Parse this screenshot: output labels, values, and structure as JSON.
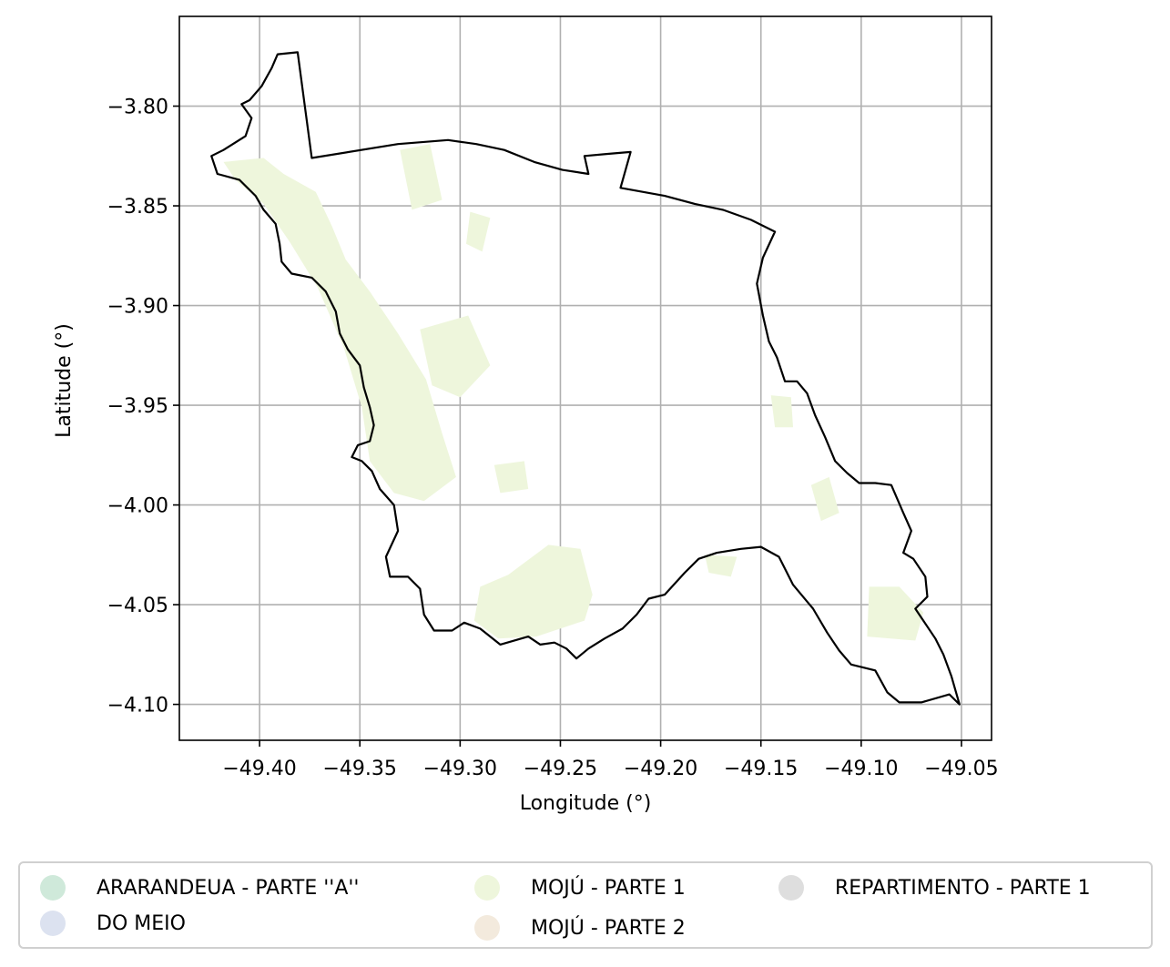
{
  "chart_data": {
    "type": "map",
    "xlabel": "Longitude (°)",
    "ylabel": "Latitude (°)",
    "xlim": [
      -49.44,
      -49.035
    ],
    "ylim": [
      -4.118,
      -3.755
    ],
    "x_ticks": [
      -49.4,
      -49.35,
      -49.3,
      -49.25,
      -49.2,
      -49.15,
      -49.1,
      -49.05
    ],
    "x_tick_labels": [
      "−49.40",
      "−49.35",
      "−49.30",
      "−49.25",
      "−49.20",
      "−49.15",
      "−49.10",
      "−49.05"
    ],
    "y_ticks": [
      -3.8,
      -3.85,
      -3.9,
      -3.95,
      -4.0,
      -4.05,
      -4.1
    ],
    "y_tick_labels": [
      "−3.80",
      "−3.85",
      "−3.90",
      "−3.95",
      "−4.00",
      "−4.05",
      "−4.10"
    ],
    "grid": true,
    "legend_position": "bottom-center",
    "boundary_color": "#000000",
    "boundary": [
      [
        -49.381,
        -3.773
      ],
      [
        -49.391,
        -3.774
      ],
      [
        -49.394,
        -3.781
      ],
      [
        -49.399,
        -3.79
      ],
      [
        -49.405,
        -3.797
      ],
      [
        -49.409,
        -3.799
      ],
      [
        -49.404,
        -3.806
      ],
      [
        -49.407,
        -3.815
      ],
      [
        -49.418,
        -3.822
      ],
      [
        -49.424,
        -3.825
      ],
      [
        -49.421,
        -3.834
      ],
      [
        -49.41,
        -3.837
      ],
      [
        -49.402,
        -3.845
      ],
      [
        -49.398,
        -3.852
      ],
      [
        -49.392,
        -3.859
      ],
      [
        -49.39,
        -3.869
      ],
      [
        -49.389,
        -3.878
      ],
      [
        -49.384,
        -3.884
      ],
      [
        -49.374,
        -3.886
      ],
      [
        -49.367,
        -3.893
      ],
      [
        -49.362,
        -3.903
      ],
      [
        -49.36,
        -3.914
      ],
      [
        -49.356,
        -3.922
      ],
      [
        -49.35,
        -3.93
      ],
      [
        -49.348,
        -3.941
      ],
      [
        -49.345,
        -3.951
      ],
      [
        -49.343,
        -3.96
      ],
      [
        -49.345,
        -3.968
      ],
      [
        -49.351,
        -3.97
      ],
      [
        -49.354,
        -3.976
      ],
      [
        -49.349,
        -3.978
      ],
      [
        -49.344,
        -3.983
      ],
      [
        -49.34,
        -3.992
      ],
      [
        -49.333,
        -4.0
      ],
      [
        -49.331,
        -4.013
      ],
      [
        -49.337,
        -4.026
      ],
      [
        -49.335,
        -4.036
      ],
      [
        -49.326,
        -4.036
      ],
      [
        -49.32,
        -4.042
      ],
      [
        -49.318,
        -4.055
      ],
      [
        -49.313,
        -4.063
      ],
      [
        -49.304,
        -4.063
      ],
      [
        -49.298,
        -4.059
      ],
      [
        -49.29,
        -4.062
      ],
      [
        -49.28,
        -4.07
      ],
      [
        -49.266,
        -4.066
      ],
      [
        -49.26,
        -4.07
      ],
      [
        -49.253,
        -4.069
      ],
      [
        -49.247,
        -4.072
      ],
      [
        -49.242,
        -4.077
      ],
      [
        -49.236,
        -4.072
      ],
      [
        -49.228,
        -4.067
      ],
      [
        -49.219,
        -4.062
      ],
      [
        -49.212,
        -4.055
      ],
      [
        -49.206,
        -4.047
      ],
      [
        -49.198,
        -4.045
      ],
      [
        -49.188,
        -4.034
      ],
      [
        -49.181,
        -4.027
      ],
      [
        -49.172,
        -4.024
      ],
      [
        -49.16,
        -4.022
      ],
      [
        -49.15,
        -4.021
      ],
      [
        -49.141,
        -4.026
      ],
      [
        -49.134,
        -4.04
      ],
      [
        -49.124,
        -4.052
      ],
      [
        -49.117,
        -4.064
      ],
      [
        -49.111,
        -4.073
      ],
      [
        -49.105,
        -4.08
      ],
      [
        -49.093,
        -4.083
      ],
      [
        -49.087,
        -4.094
      ],
      [
        -49.081,
        -4.099
      ],
      [
        -49.07,
        -4.099
      ],
      [
        -49.056,
        -4.095
      ],
      [
        -49.051,
        -4.1
      ],
      [
        -49.055,
        -4.086
      ],
      [
        -49.059,
        -4.075
      ],
      [
        -49.063,
        -4.067
      ],
      [
        -49.069,
        -4.058
      ],
      [
        -49.073,
        -4.052
      ],
      [
        -49.067,
        -4.046
      ],
      [
        -49.068,
        -4.036
      ],
      [
        -49.074,
        -4.027
      ],
      [
        -49.079,
        -4.024
      ],
      [
        -49.075,
        -4.013
      ],
      [
        -49.079,
        -4.004
      ],
      [
        -49.085,
        -3.99
      ],
      [
        -49.093,
        -3.989
      ],
      [
        -49.101,
        -3.989
      ],
      [
        -49.107,
        -3.984
      ],
      [
        -49.113,
        -3.978
      ],
      [
        -49.118,
        -3.966
      ],
      [
        -49.123,
        -3.955
      ],
      [
        -49.127,
        -3.944
      ],
      [
        -49.132,
        -3.938
      ],
      [
        -49.138,
        -3.938
      ],
      [
        -49.142,
        -3.926
      ],
      [
        -49.146,
        -3.918
      ],
      [
        -49.149,
        -3.905
      ],
      [
        -49.152,
        -3.889
      ],
      [
        -49.149,
        -3.876
      ],
      [
        -49.143,
        -3.863
      ],
      [
        -49.155,
        -3.857
      ],
      [
        -49.169,
        -3.852
      ],
      [
        -49.183,
        -3.849
      ],
      [
        -49.198,
        -3.845
      ],
      [
        -49.22,
        -3.841
      ],
      [
        -49.215,
        -3.823
      ],
      [
        -49.227,
        -3.824
      ],
      [
        -49.238,
        -3.825
      ],
      [
        -49.236,
        -3.834
      ],
      [
        -49.249,
        -3.832
      ],
      [
        -49.263,
        -3.828
      ],
      [
        -49.278,
        -3.822
      ],
      [
        -49.292,
        -3.819
      ],
      [
        -49.306,
        -3.817
      ],
      [
        -49.331,
        -3.819
      ],
      [
        -49.374,
        -3.826
      ],
      [
        -49.381,
        -3.773
      ]
    ],
    "regions_color": "#eef6dc",
    "regions": [
      [
        [
          -49.418,
          -3.828
        ],
        [
          -49.398,
          -3.826
        ],
        [
          -49.388,
          -3.834
        ],
        [
          -49.372,
          -3.843
        ],
        [
          -49.364,
          -3.86
        ],
        [
          -49.357,
          -3.877
        ],
        [
          -49.345,
          -3.893
        ],
        [
          -49.331,
          -3.914
        ],
        [
          -49.317,
          -3.937
        ],
        [
          -49.309,
          -3.964
        ],
        [
          -49.302,
          -3.986
        ],
        [
          -49.318,
          -3.998
        ],
        [
          -49.333,
          -3.994
        ],
        [
          -49.345,
          -3.978
        ],
        [
          -49.349,
          -3.951
        ],
        [
          -49.358,
          -3.921
        ],
        [
          -49.371,
          -3.891
        ],
        [
          -49.385,
          -3.868
        ],
        [
          -49.398,
          -3.849
        ],
        [
          -49.412,
          -3.837
        ]
      ],
      [
        [
          -49.33,
          -3.822
        ],
        [
          -49.315,
          -3.819
        ],
        [
          -49.309,
          -3.847
        ],
        [
          -49.324,
          -3.852
        ]
      ],
      [
        [
          -49.295,
          -3.853
        ],
        [
          -49.285,
          -3.856
        ],
        [
          -49.289,
          -3.873
        ],
        [
          -49.297,
          -3.869
        ]
      ],
      [
        [
          -49.32,
          -3.912
        ],
        [
          -49.296,
          -3.905
        ],
        [
          -49.285,
          -3.93
        ],
        [
          -49.3,
          -3.946
        ],
        [
          -49.314,
          -3.94
        ]
      ],
      [
        [
          -49.283,
          -3.98
        ],
        [
          -49.268,
          -3.978
        ],
        [
          -49.266,
          -3.992
        ],
        [
          -49.28,
          -3.994
        ]
      ],
      [
        [
          -49.29,
          -4.041
        ],
        [
          -49.276,
          -4.035
        ],
        [
          -49.256,
          -4.02
        ],
        [
          -49.24,
          -4.022
        ],
        [
          -49.234,
          -4.045
        ],
        [
          -49.238,
          -4.058
        ],
        [
          -49.262,
          -4.066
        ],
        [
          -49.281,
          -4.067
        ],
        [
          -49.293,
          -4.058
        ]
      ],
      [
        [
          -49.178,
          -4.025
        ],
        [
          -49.162,
          -4.026
        ],
        [
          -49.165,
          -4.036
        ],
        [
          -49.176,
          -4.034
        ]
      ],
      [
        [
          -49.145,
          -3.945
        ],
        [
          -49.135,
          -3.946
        ],
        [
          -49.134,
          -3.961
        ],
        [
          -49.143,
          -3.961
        ]
      ],
      [
        [
          -49.125,
          -3.99
        ],
        [
          -49.116,
          -3.986
        ],
        [
          -49.111,
          -4.004
        ],
        [
          -49.12,
          -4.008
        ]
      ],
      [
        [
          -49.096,
          -4.041
        ],
        [
          -49.081,
          -4.041
        ],
        [
          -49.069,
          -4.054
        ],
        [
          -49.073,
          -4.068
        ],
        [
          -49.097,
          -4.066
        ]
      ]
    ]
  },
  "legend": {
    "items": [
      {
        "label": "ARARANDEUA - PARTE ''A''",
        "color": "#cfe9da"
      },
      {
        "label": "DO MEIO",
        "color": "#dce2f0"
      },
      {
        "label": "MOJÚ - PARTE 1",
        "color": "#eef6dc"
      },
      {
        "label": "MOJÚ - PARTE 2",
        "color": "#f3eadd"
      },
      {
        "label": "REPARTIMENTO - PARTE 1",
        "color": "#dedede"
      }
    ]
  }
}
